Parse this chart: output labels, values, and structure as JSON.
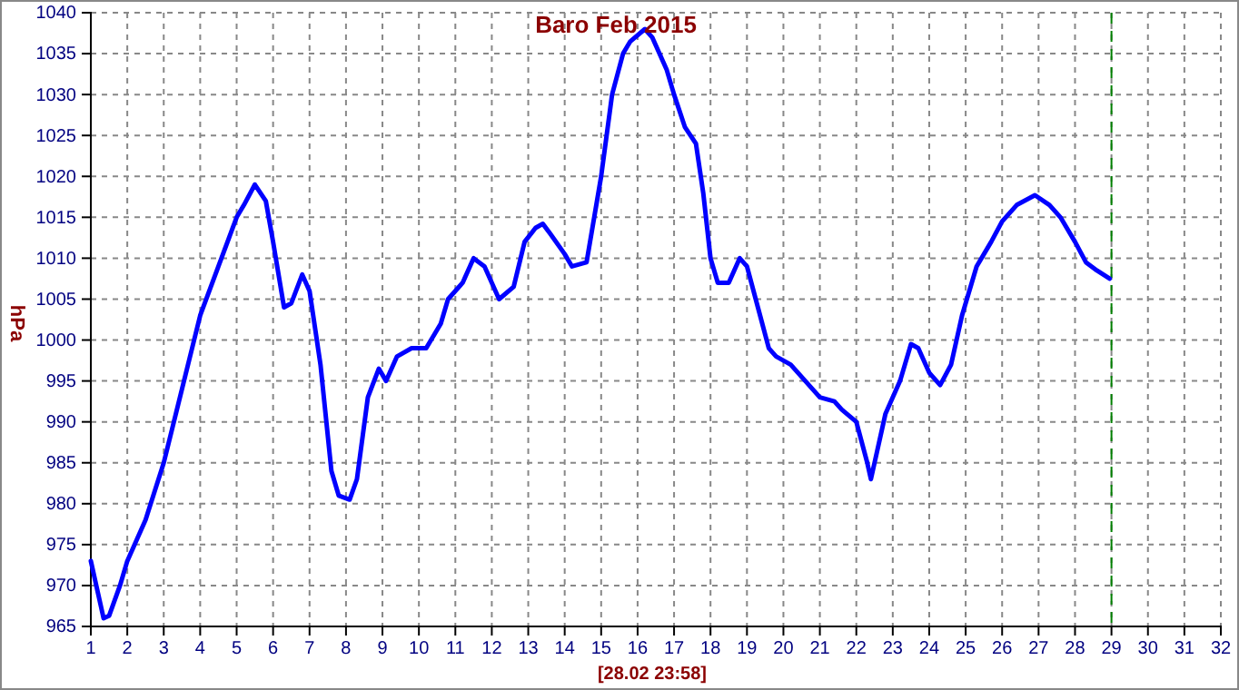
{
  "chart_data": {
    "type": "line",
    "title": "Baro Feb 2015",
    "xlabel": "[28.02 23:58]",
    "ylabel": "hPa",
    "x": [
      1,
      1.2,
      1.35,
      1.5,
      1.8,
      2,
      2.5,
      3,
      3.5,
      4,
      4.5,
      5,
      5.2,
      5.5,
      5.8,
      6,
      6.3,
      6.5,
      6.8,
      7,
      7.3,
      7.6,
      7.8,
      8.1,
      8.3,
      8.6,
      8.9,
      9.1,
      9.4,
      9.8,
      10.2,
      10.6,
      10.8,
      11.2,
      11.5,
      11.8,
      12.2,
      12.6,
      12.9,
      13.2,
      13.4,
      13.6,
      14,
      14.2,
      14.6,
      15,
      15.3,
      15.6,
      15.8,
      16.2,
      16.4,
      16.8,
      17,
      17.3,
      17.6,
      17.8,
      18,
      18.2,
      18.5,
      18.8,
      19,
      19.3,
      19.6,
      19.8,
      20.2,
      20.6,
      21,
      21.4,
      21.6,
      22,
      22.3,
      22.4,
      22.5,
      22.8,
      23.2,
      23.5,
      23.7,
      24,
      24.3,
      24.6,
      24.9,
      25.3,
      25.7,
      26,
      26.4,
      26.9,
      27.3,
      27.6,
      28,
      28.3,
      28.6,
      28.95
    ],
    "series": [
      {
        "color": "#0000ff",
        "values": [
          973,
          969,
          966,
          966.3,
          970,
          973,
          978,
          985,
          994,
          1003,
          1009,
          1015,
          1016.5,
          1019,
          1017,
          1012,
          1004,
          1004.5,
          1008,
          1006,
          997,
          984,
          981,
          980.5,
          983,
          993,
          996.5,
          995,
          998,
          999,
          999,
          1002,
          1005,
          1007,
          1010,
          1009,
          1005,
          1006.5,
          1012,
          1013.7,
          1014.2,
          1013,
          1010.5,
          1009,
          1009.5,
          1020,
          1030,
          1035,
          1036.5,
          1038,
          1037,
          1033,
          1030,
          1026,
          1024,
          1018,
          1010,
          1007,
          1007,
          1010,
          1009,
          1004,
          999,
          998,
          997,
          995,
          993,
          992.5,
          991.5,
          990,
          985,
          983,
          985,
          991,
          995,
          999.5,
          999,
          996,
          994.5,
          997,
          1003,
          1009,
          1012,
          1014.5,
          1016.5,
          1017.7,
          1016.5,
          1015,
          1012,
          1009.5,
          1008.5,
          1007.5
        ]
      }
    ],
    "xlim": [
      1,
      32
    ],
    "xticks": [
      1,
      2,
      3,
      4,
      5,
      6,
      7,
      8,
      9,
      10,
      11,
      12,
      13,
      14,
      15,
      16,
      17,
      18,
      19,
      20,
      21,
      22,
      23,
      24,
      25,
      26,
      27,
      28,
      29,
      30,
      31,
      32
    ],
    "ylim": [
      965,
      1040
    ],
    "yticks": [
      965,
      970,
      975,
      980,
      985,
      990,
      995,
      1000,
      1005,
      1010,
      1015,
      1020,
      1025,
      1030,
      1035,
      1040
    ],
    "grid": true,
    "marker": "none",
    "line_style": "solid",
    "ref_lines": [
      {
        "axis": "x",
        "value": 29,
        "color": "#008000",
        "line_style": "dashed"
      }
    ]
  }
}
